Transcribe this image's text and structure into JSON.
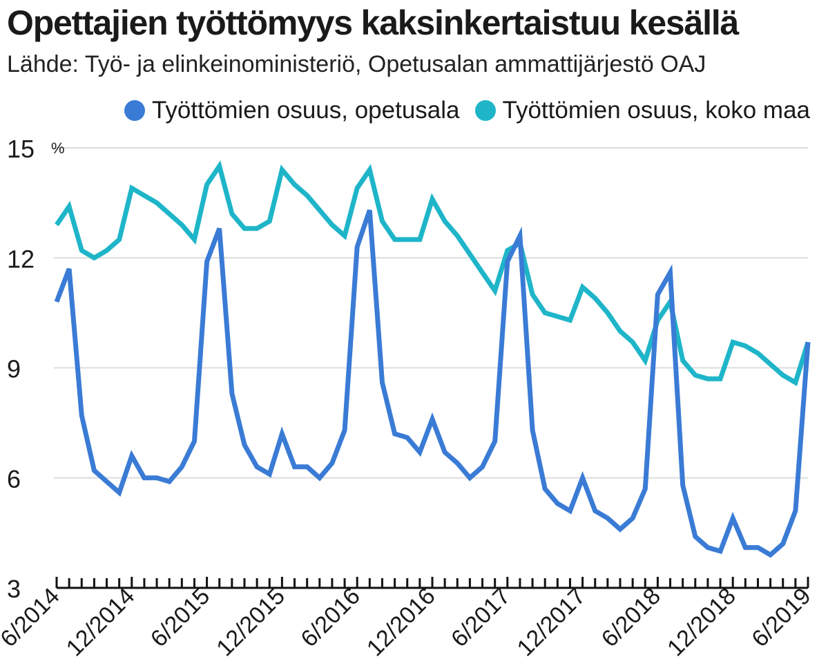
{
  "title": "Opettajien työttömyys kaksinkertaistuu kesällä",
  "subtitle": "Lähde: Työ- ja elinkeinoministeriö, Opetusalan ammattijärjestö OAJ",
  "colors": {
    "opetusala": "#3a7bd5",
    "koko_maa": "#1fb5c9",
    "grid": "#dcdcdc",
    "axis": "#111111"
  },
  "chart_data": {
    "type": "line",
    "title": "Opettajien työttömyys kaksinkertaistuu kesällä",
    "ylabel": "%",
    "ylim": [
      3,
      15
    ],
    "yticks": [
      3,
      6,
      9,
      12,
      15
    ],
    "grid": true,
    "legend_position": "top-right",
    "x": [
      "6/2014",
      "7/2014",
      "8/2014",
      "9/2014",
      "10/2014",
      "11/2014",
      "12/2014",
      "1/2015",
      "2/2015",
      "3/2015",
      "4/2015",
      "5/2015",
      "6/2015",
      "7/2015",
      "8/2015",
      "9/2015",
      "10/2015",
      "11/2015",
      "12/2015",
      "1/2016",
      "2/2016",
      "3/2016",
      "4/2016",
      "5/2016",
      "6/2016",
      "7/2016",
      "8/2016",
      "9/2016",
      "10/2016",
      "11/2016",
      "12/2016",
      "1/2017",
      "2/2017",
      "3/2017",
      "4/2017",
      "5/2017",
      "6/2017",
      "7/2017",
      "8/2017",
      "9/2017",
      "10/2017",
      "11/2017",
      "12/2017",
      "1/2018",
      "2/2018",
      "3/2018",
      "4/2018",
      "5/2018",
      "6/2018",
      "7/2018",
      "8/2018",
      "9/2018",
      "10/2018",
      "11/2018",
      "12/2018",
      "1/2019",
      "2/2019",
      "3/2019",
      "4/2019",
      "5/2019",
      "6/2019"
    ],
    "xtick_labels": [
      "6/2014",
      "12/2014",
      "6/2015",
      "12/2015",
      "6/2016",
      "12/2016",
      "6/2017",
      "12/2017",
      "6/2018",
      "12/2018",
      "6/2019"
    ],
    "series": [
      {
        "name": "Työttömien osuus, opetusala",
        "values": [
          10.8,
          11.7,
          7.7,
          6.2,
          5.9,
          5.6,
          6.6,
          6.0,
          6.0,
          5.9,
          6.3,
          7.0,
          11.9,
          12.8,
          8.3,
          6.9,
          6.3,
          6.1,
          7.2,
          6.3,
          6.3,
          6.0,
          6.4,
          7.3,
          12.3,
          13.3,
          8.6,
          7.2,
          7.1,
          6.7,
          7.6,
          6.7,
          6.4,
          6.0,
          6.3,
          7.0,
          11.9,
          12.6,
          7.3,
          5.7,
          5.3,
          5.1,
          6.0,
          5.1,
          4.9,
          4.6,
          4.9,
          5.7,
          11.0,
          11.6,
          5.8,
          4.4,
          4.1,
          4.0,
          4.9,
          4.1,
          4.1,
          3.9,
          4.2,
          5.1,
          9.7
        ]
      },
      {
        "name": "Työttömien osuus, koko maa",
        "values": [
          12.9,
          13.4,
          12.2,
          12.0,
          12.2,
          12.5,
          13.9,
          13.7,
          13.5,
          13.2,
          12.9,
          12.5,
          14.0,
          14.5,
          13.2,
          12.8,
          12.8,
          13.0,
          14.4,
          14.0,
          13.7,
          13.3,
          12.9,
          12.6,
          13.9,
          14.4,
          13.0,
          12.5,
          12.5,
          12.5,
          13.6,
          13.0,
          12.6,
          12.1,
          11.6,
          11.1,
          12.2,
          12.4,
          11.0,
          10.5,
          10.4,
          10.3,
          11.2,
          10.9,
          10.5,
          10.0,
          9.7,
          9.2,
          10.3,
          10.8,
          9.2,
          8.8,
          8.7,
          8.7,
          9.7,
          9.6,
          9.4,
          9.1,
          8.8,
          8.6,
          9.7
        ]
      }
    ]
  }
}
